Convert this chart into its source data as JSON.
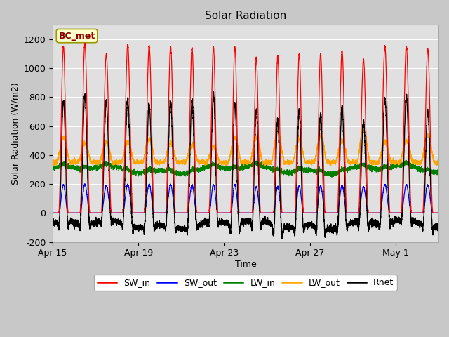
{
  "title": "Solar Radiation",
  "xlabel": "Time",
  "ylabel": "Solar Radiation (W/m2)",
  "annotation": "BC_met",
  "ylim": [
    -200,
    1300
  ],
  "yticks": [
    -200,
    0,
    200,
    400,
    600,
    800,
    1000,
    1200
  ],
  "xtick_positions": [
    0,
    4,
    8,
    12,
    16
  ],
  "xtick_labels": [
    "Apr 15",
    "Apr 19",
    "Apr 23",
    "Apr 27",
    "May 1"
  ],
  "legend_labels": [
    "SW_in",
    "SW_out",
    "LW_in",
    "LW_out",
    "Rnet"
  ],
  "legend_colors": [
    "red",
    "blue",
    "green",
    "orange",
    "black"
  ],
  "n_days": 18,
  "xlim": [
    0,
    18
  ]
}
